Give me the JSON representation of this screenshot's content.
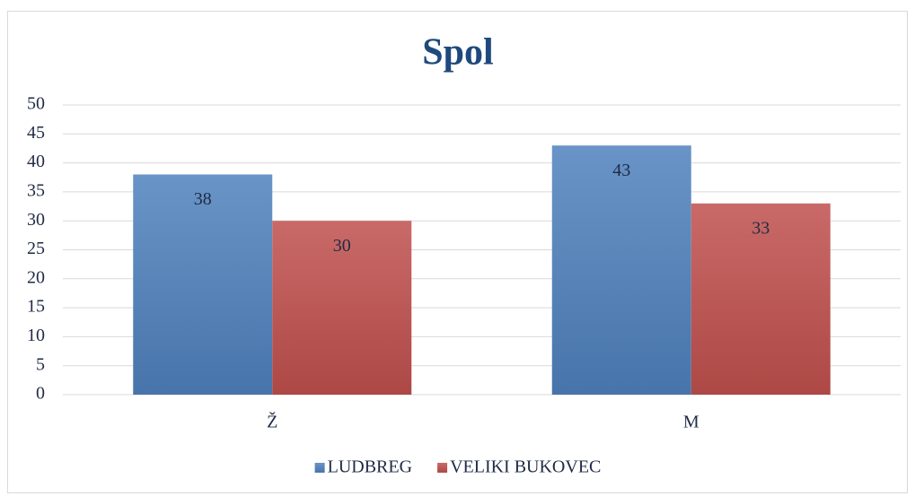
{
  "chart_data": {
    "type": "bar",
    "title": "Spol",
    "categories": [
      "Ž",
      "M"
    ],
    "series": [
      {
        "name": "LUDBREG",
        "color": "#4f81bd",
        "values": [
          38,
          43
        ]
      },
      {
        "name": "VELIKI BUKOVEC",
        "color": "#c0504d",
        "values": [
          30,
          33
        ]
      }
    ],
    "ylim": [
      0,
      50
    ],
    "yticks": [
      0,
      5,
      10,
      15,
      20,
      25,
      30,
      35,
      40,
      45,
      50
    ],
    "grid": true,
    "legend": "bottom",
    "data_labels": true
  }
}
